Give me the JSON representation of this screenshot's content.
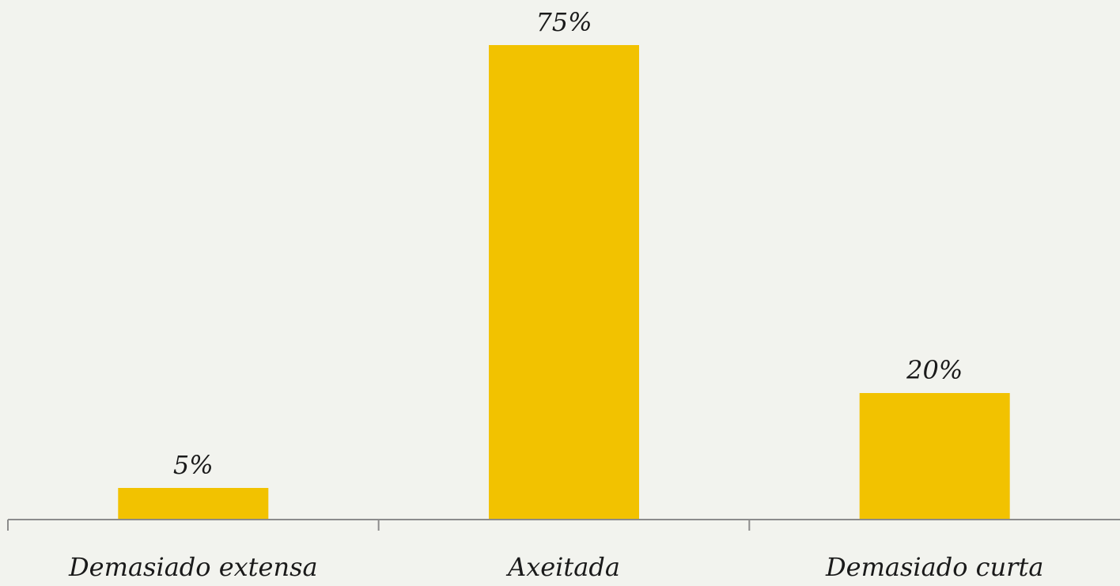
{
  "chart_data": {
    "type": "bar",
    "categories": [
      "Demasiado extensa",
      "Axeitada",
      "Demasiado curta"
    ],
    "values": [
      5,
      75,
      20
    ],
    "data_labels": [
      "5%",
      "75%",
      "20%"
    ],
    "title": "",
    "xlabel": "",
    "ylabel": "",
    "ylim": [
      0,
      75
    ],
    "grid": false,
    "legend": "none",
    "colors": {
      "bar": "#f2c200",
      "axis": "#8c8c8c",
      "text": "#1a1a1a",
      "background": "#f2f3ee"
    }
  }
}
